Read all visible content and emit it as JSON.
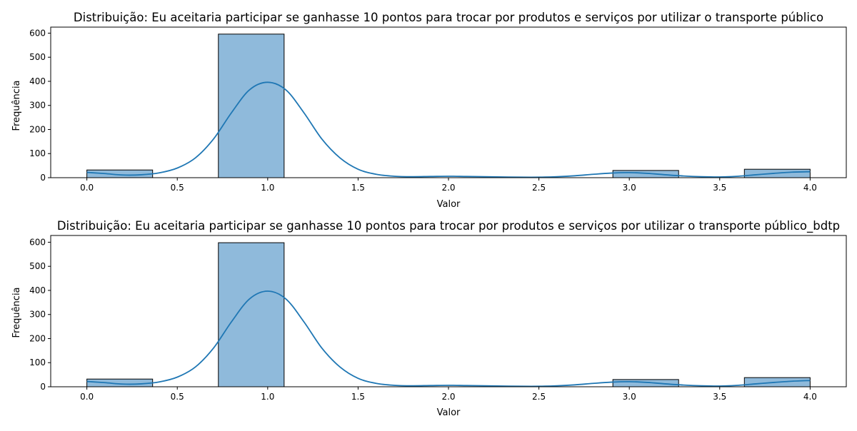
{
  "chart_data": [
    {
      "type": "bar",
      "title": "Distribuição: Eu aceitaria participar se ganhasse 10 pontos para trocar por produtos e serviços por utilizar o transporte público",
      "xlabel": "Valor",
      "ylabel": "Frequência",
      "xlim": [
        -0.2,
        4.2
      ],
      "ylim": [
        0,
        625
      ],
      "xticks": [
        "0.0",
        "0.5",
        "1.0",
        "1.5",
        "2.0",
        "2.5",
        "3.0",
        "3.5",
        "4.0"
      ],
      "yticks": [
        "0",
        "100",
        "200",
        "300",
        "400",
        "500",
        "600"
      ],
      "bin_edges": [
        0.0,
        0.3636,
        0.7273,
        1.0909,
        1.4545,
        1.8182,
        2.1818,
        2.5455,
        2.9091,
        3.2727,
        3.6364,
        4.0
      ],
      "values": [
        32,
        0,
        596,
        0,
        0,
        0,
        0,
        0,
        30,
        0,
        35
      ],
      "kde": {
        "x": [
          0.0,
          0.1,
          0.2,
          0.3,
          0.4,
          0.5,
          0.6,
          0.7,
          0.8,
          0.9,
          1.0,
          1.1,
          1.2,
          1.3,
          1.4,
          1.5,
          1.6,
          1.7,
          1.8,
          1.9,
          2.0,
          2.1,
          2.2,
          2.3,
          2.4,
          2.5,
          2.6,
          2.7,
          2.8,
          2.9,
          3.0,
          3.1,
          3.2,
          3.3,
          3.4,
          3.5,
          3.6,
          3.7,
          3.8,
          3.9,
          4.0
        ],
        "y": [
          22,
          17,
          11,
          12,
          20,
          40,
          82,
          160,
          270,
          365,
          396,
          365,
          270,
          160,
          82,
          35,
          14,
          6,
          4,
          5,
          6,
          5,
          4,
          3,
          2,
          2,
          4,
          8,
          14,
          19,
          21,
          18,
          12,
          7,
          4,
          3,
          6,
          12,
          18,
          23,
          25
        ]
      },
      "bar_color": "#8fbadb",
      "line_color": "#1f77b4",
      "grid": false
    },
    {
      "type": "bar",
      "title": "Distribuição: Eu aceitaria participar se ganhasse 10 pontos para trocar por produtos e serviços por utilizar o transporte público_bdtp",
      "xlabel": "Valor",
      "ylabel": "Frequência",
      "xlim": [
        -0.2,
        4.2
      ],
      "ylim": [
        0,
        628
      ],
      "xticks": [
        "0.0",
        "0.5",
        "1.0",
        "1.5",
        "2.0",
        "2.5",
        "3.0",
        "3.5",
        "4.0"
      ],
      "yticks": [
        "0",
        "100",
        "200",
        "300",
        "400",
        "500",
        "600"
      ],
      "bin_edges": [
        0.0,
        0.3636,
        0.7273,
        1.0909,
        1.4545,
        1.8182,
        2.1818,
        2.5455,
        2.9091,
        3.2727,
        3.6364,
        4.0
      ],
      "values": [
        32,
        0,
        598,
        0,
        0,
        0,
        0,
        0,
        30,
        0,
        38
      ],
      "kde": {
        "x": [
          0.0,
          0.1,
          0.2,
          0.3,
          0.4,
          0.5,
          0.6,
          0.7,
          0.8,
          0.9,
          1.0,
          1.1,
          1.2,
          1.3,
          1.4,
          1.5,
          1.6,
          1.7,
          1.8,
          1.9,
          2.0,
          2.1,
          2.2,
          2.3,
          2.4,
          2.5,
          2.6,
          2.7,
          2.8,
          2.9,
          3.0,
          3.1,
          3.2,
          3.3,
          3.4,
          3.5,
          3.6,
          3.7,
          3.8,
          3.9,
          4.0
        ],
        "y": [
          22,
          17,
          11,
          12,
          20,
          40,
          82,
          160,
          270,
          365,
          397,
          365,
          270,
          160,
          82,
          35,
          14,
          6,
          4,
          5,
          6,
          5,
          4,
          3,
          2,
          2,
          4,
          8,
          14,
          19,
          21,
          18,
          12,
          7,
          4,
          3,
          6,
          12,
          18,
          23,
          26
        ]
      },
      "bar_color": "#8fbadb",
      "line_color": "#1f77b4",
      "grid": false
    }
  ]
}
